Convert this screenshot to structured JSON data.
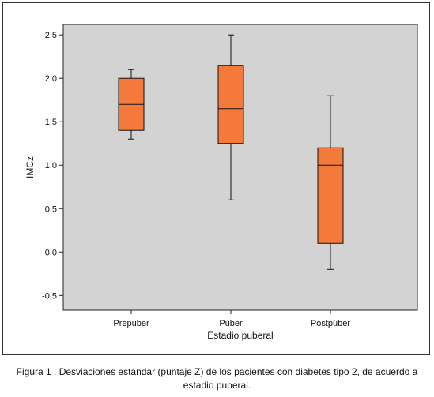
{
  "chart_data": {
    "type": "box",
    "xlabel": "Estadio puberal",
    "ylabel": "IMCz",
    "ylim": [
      -0.67,
      2.62
    ],
    "yticks": [
      -0.5,
      0.0,
      0.5,
      1.0,
      1.5,
      2.0,
      2.5
    ],
    "ytick_labels": [
      "-0,5",
      "0,0",
      "0,5",
      "1,0",
      "1,5",
      "2,0",
      "2,5"
    ],
    "categories": [
      "Prepúber",
      "Púber",
      "Postpúber"
    ],
    "boxes": [
      {
        "category": "Prepúber",
        "min": 1.3,
        "q1": 1.4,
        "median": 1.7,
        "q3": 2.0,
        "max": 2.1
      },
      {
        "category": "Púber",
        "min": 0.6,
        "q1": 1.25,
        "median": 1.65,
        "q3": 2.15,
        "max": 2.5
      },
      {
        "category": "Postpúber",
        "min": -0.2,
        "q1": 0.1,
        "median": 1.0,
        "q3": 1.2,
        "max": 1.8
      }
    ],
    "box_color": "#f47a3c",
    "background_color": "#d3d3d3",
    "grid": false
  },
  "caption": "Figura 1 . Desviaciones estándar (puntaje Z) de los pacientes con diabetes tipo 2, de acuerdo a estadio puberal."
}
